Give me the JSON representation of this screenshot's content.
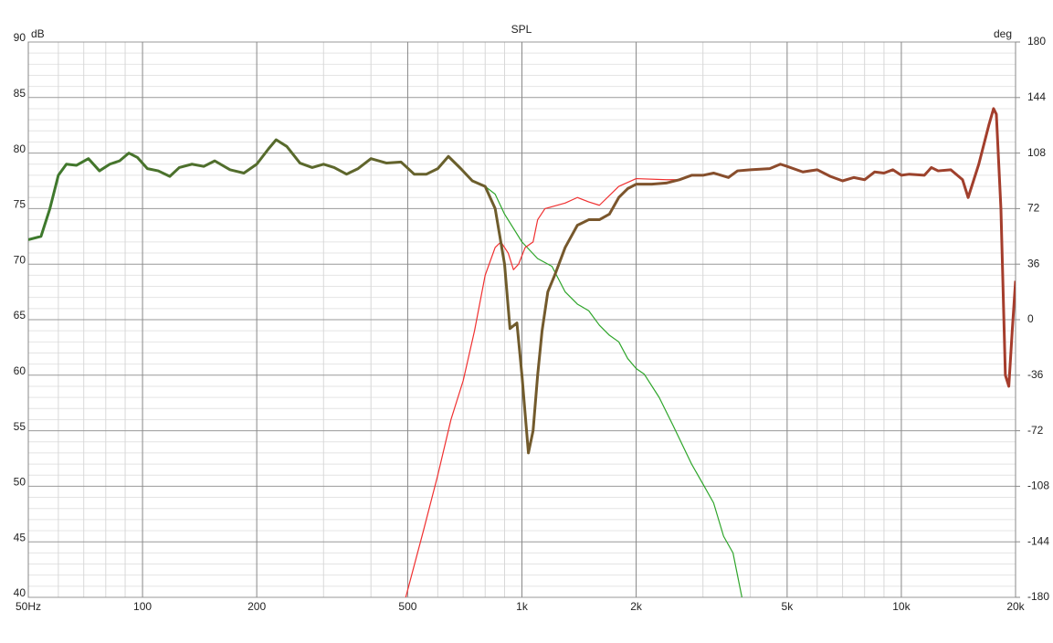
{
  "chart_data": {
    "type": "line",
    "title": "SPL",
    "ylabel": "dB",
    "y2label": "deg",
    "xscale": "log",
    "grid": true,
    "xlim": [
      50,
      20000
    ],
    "ylim": [
      40,
      90
    ],
    "y2lim": [
      -180,
      180
    ],
    "xticks": [
      {
        "value": 50,
        "label": "50Hz"
      },
      100,
      200,
      500,
      {
        "value": 1000,
        "label": "1k"
      },
      {
        "value": 2000,
        "label": "2k"
      },
      {
        "value": 5000,
        "label": "5k"
      },
      {
        "value": 10000,
        "label": "10k"
      },
      {
        "value": 20000,
        "label": "20k"
      }
    ],
    "x_minor_ticks": [
      60,
      70,
      80,
      90,
      300,
      400,
      600,
      700,
      800,
      900,
      3000,
      4000,
      6000,
      7000,
      8000,
      9000
    ],
    "yticks": [
      40,
      45,
      50,
      55,
      60,
      65,
      70,
      75,
      80,
      85,
      90
    ],
    "y_minor_ticks": [
      41,
      42,
      43,
      44,
      46,
      47,
      48,
      49,
      51,
      52,
      53,
      54,
      56,
      57,
      58,
      59,
      61,
      62,
      63,
      64,
      66,
      67,
      68,
      69,
      71,
      72,
      73,
      74,
      76,
      77,
      78,
      79,
      81,
      82,
      83,
      84,
      86,
      87,
      88,
      89
    ],
    "y2ticks": [
      -180,
      -144,
      -108,
      -72,
      -36,
      0,
      36,
      72,
      108,
      144,
      180
    ],
    "series": [
      {
        "color": "#2ea52a",
        "width": 1.2,
        "x": [
          50,
          54,
          57,
          60,
          63,
          67,
          72,
          77,
          82,
          87,
          92,
          97,
          103,
          110,
          118,
          125,
          135,
          145,
          155,
          170,
          185,
          200,
          215,
          225,
          240,
          260,
          280,
          300,
          320,
          345,
          370,
          400,
          440,
          480,
          520,
          560,
          600,
          640,
          690,
          740,
          800,
          850,
          900,
          1000,
          1100,
          1200,
          1300,
          1400,
          1500,
          1600,
          1700,
          1800,
          1900,
          2000,
          2100,
          2300,
          2500,
          2800,
          3000,
          3200,
          3400,
          3600,
          3800
        ],
        "values": [
          72.2,
          72.5,
          75,
          78,
          79,
          78.9,
          79.5,
          78.4,
          79,
          79.3,
          80,
          79.6,
          78.6,
          78.4,
          77.9,
          78.7,
          79,
          78.8,
          79.3,
          78.5,
          78.2,
          79,
          80.4,
          81.2,
          80.6,
          79.1,
          78.7,
          79,
          78.7,
          78.1,
          78.6,
          79.5,
          79.1,
          79.2,
          78.1,
          78.1,
          78.6,
          79.7,
          78.6,
          77.5,
          77,
          76.3,
          74.5,
          72,
          70.5,
          69.8,
          67.5,
          66.4,
          65.8,
          64.5,
          63.6,
          63,
          61.5,
          60.6,
          60.1,
          58,
          55.5,
          52,
          50.2,
          48.5,
          45.5,
          44,
          40
        ]
      },
      {
        "color": "#f03030",
        "width": 1.2,
        "x": [
          494,
          550,
          600,
          650,
          700,
          750,
          800,
          850,
          880,
          920,
          950,
          980,
          1020,
          1070,
          1100,
          1150,
          1300,
          1400,
          1500,
          1600,
          1800,
          2000,
          2400,
          2600
        ],
        "values": [
          40,
          46,
          51,
          56,
          59.5,
          64,
          69,
          71.5,
          72,
          71,
          69.5,
          70,
          71.5,
          72,
          74,
          75,
          75.5,
          76,
          75.6,
          75.3,
          77,
          77.7,
          77.6,
          77.6
        ]
      },
      {
        "colors": [
          "#3c7a2c",
          "#a63c2c"
        ],
        "width": 3,
        "x": [
          50,
          54,
          57,
          60,
          63,
          67,
          72,
          77,
          82,
          87,
          92,
          97,
          103,
          110,
          118,
          125,
          135,
          145,
          155,
          170,
          185,
          200,
          215,
          225,
          240,
          260,
          280,
          300,
          320,
          345,
          370,
          400,
          440,
          480,
          520,
          560,
          600,
          640,
          690,
          740,
          800,
          850,
          900,
          930,
          970,
          1000,
          1040,
          1070,
          1100,
          1130,
          1170,
          1220,
          1300,
          1400,
          1500,
          1600,
          1700,
          1800,
          1900,
          2000,
          2200,
          2400,
          2600,
          2800,
          3000,
          3200,
          3500,
          3700,
          4000,
          4500,
          4800,
          5000,
          5500,
          6000,
          6500,
          7000,
          7500,
          8000,
          8500,
          9000,
          9500,
          10000,
          10500,
          11500,
          12000,
          12500,
          13500,
          14500,
          15000,
          16000,
          17000,
          17500,
          17800,
          18300,
          18800,
          19200,
          19600,
          20000
        ],
        "values": [
          72.2,
          72.5,
          75,
          78,
          79,
          78.9,
          79.5,
          78.4,
          79,
          79.3,
          80,
          79.6,
          78.6,
          78.4,
          77.9,
          78.7,
          79,
          78.8,
          79.3,
          78.5,
          78.2,
          79,
          80.4,
          81.2,
          80.6,
          79.1,
          78.7,
          79,
          78.7,
          78.1,
          78.6,
          79.5,
          79.1,
          79.2,
          78.1,
          78.1,
          78.6,
          79.7,
          78.6,
          77.5,
          77,
          75,
          70,
          64.2,
          64.7,
          60,
          53,
          55,
          60,
          64,
          67.5,
          69,
          71.5,
          73.5,
          74,
          74,
          74.5,
          76,
          76.8,
          77.2,
          77.2,
          77.3,
          77.6,
          78,
          78,
          78.2,
          77.8,
          78.4,
          78.5,
          78.6,
          79,
          78.8,
          78.3,
          78.5,
          77.9,
          77.5,
          77.8,
          77.6,
          78.3,
          78.2,
          78.5,
          78,
          78.1,
          78,
          78.7,
          78.4,
          78.5,
          77.6,
          76,
          79,
          82.5,
          84,
          83.5,
          75,
          60,
          59,
          64,
          68.5
        ]
      }
    ]
  }
}
